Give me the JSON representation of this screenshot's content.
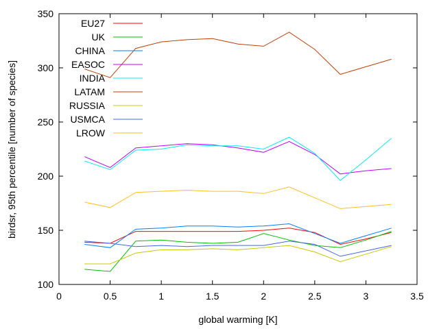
{
  "chart_data": {
    "type": "line",
    "xlabel": "global warming [K]",
    "ylabel": "birdsr, 95th percentile [number of species]",
    "xlim": [
      0,
      3.5
    ],
    "ylim": [
      100,
      350
    ],
    "xticks": [
      "0",
      "0.5",
      "1",
      "1.5",
      "2",
      "2.5",
      "3",
      "3.5"
    ],
    "yticks": [
      "100",
      "150",
      "200",
      "250",
      "300",
      "350"
    ],
    "x": [
      0.25,
      0.5,
      0.75,
      1.0,
      1.25,
      1.5,
      1.75,
      2.0,
      2.25,
      2.5,
      2.75,
      3.0,
      3.25
    ],
    "legend_position": "top-left",
    "grid": false,
    "series": [
      {
        "name": "EU27",
        "color": "#ff0000",
        "values": [
          139,
          138,
          149,
          149,
          149,
          149,
          149,
          150,
          152,
          148,
          137,
          142,
          148
        ]
      },
      {
        "name": "UK",
        "color": "#00c000",
        "values": [
          114,
          112,
          140,
          141,
          139,
          138,
          139,
          147,
          141,
          136,
          134,
          141,
          149
        ]
      },
      {
        "name": "CHINA",
        "color": "#0080ff",
        "values": [
          137,
          134,
          151,
          152,
          154,
          154,
          153,
          154,
          156,
          147,
          138,
          145,
          152
        ]
      },
      {
        "name": "EASOC",
        "color": "#c000ff",
        "values": [
          218,
          208,
          226,
          228,
          230,
          229,
          226,
          222,
          232,
          220,
          202,
          205,
          207
        ]
      },
      {
        "name": "INDIA",
        "color": "#00eeee",
        "values": [
          214,
          206,
          224,
          225,
          229,
          228,
          228,
          225,
          236,
          221,
          196,
          215,
          235
        ]
      },
      {
        "name": "LATAM",
        "color": "#c04000",
        "values": [
          299,
          291,
          318,
          324,
          326,
          327,
          322,
          320,
          333,
          317,
          294,
          301,
          308
        ]
      },
      {
        "name": "RUSSIA",
        "color": "#c8c800",
        "values": [
          119,
          119,
          129,
          132,
          132,
          133,
          132,
          134,
          136,
          130,
          121,
          128,
          135
        ]
      },
      {
        "name": "USMCA",
        "color": "#4169e1",
        "values": [
          140,
          138,
          135,
          136,
          135,
          136,
          136,
          136,
          140,
          137,
          126,
          131,
          136
        ]
      },
      {
        "name": "LROW",
        "color": "#ffc020",
        "values": [
          176,
          171,
          185,
          186,
          187,
          186,
          186,
          184,
          190,
          180,
          170,
          172,
          174
        ]
      }
    ]
  }
}
